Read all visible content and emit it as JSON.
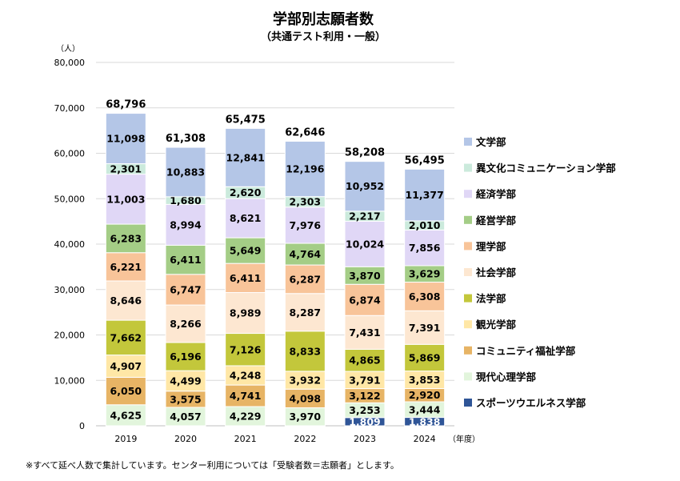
{
  "chart_data": {
    "type": "bar",
    "stacked": true,
    "title": "学部別志願者数",
    "subtitle": "（共通テスト利用・一般）",
    "y_unit": "（人）",
    "x_unit": "（年度）",
    "ylim": [
      0,
      80000
    ],
    "y_ticks": [
      "0",
      "10,000",
      "20,000",
      "30,000",
      "40,000",
      "50,000",
      "60,000",
      "70,000",
      "80,000"
    ],
    "grid": true,
    "legend_position": "right",
    "categories": [
      "2019",
      "2020",
      "2021",
      "2022",
      "2023",
      "2024"
    ],
    "totals": [
      "68,796",
      "61,308",
      "65,475",
      "62,646",
      "58,208",
      "56,495"
    ],
    "series": [
      {
        "name": "スポーツウエルネス学部",
        "color": "#2f5597",
        "values": [
          0,
          0,
          0,
          0,
          1809,
          1838
        ],
        "labels": [
          "",
          "",
          "",
          "",
          "1,809",
          "1,838"
        ]
      },
      {
        "name": "現代心理学部",
        "color": "#e2f5dc",
        "values": [
          4625,
          4057,
          4229,
          3970,
          3253,
          3444
        ],
        "labels": [
          "4,625",
          "4,057",
          "4,229",
          "3,970",
          "3,253",
          "3,444"
        ]
      },
      {
        "name": "コミュニティ福祉学部",
        "color": "#e7b465",
        "values": [
          6050,
          3575,
          4741,
          4098,
          3122,
          2920
        ],
        "labels": [
          "6,050",
          "3,575",
          "4,741",
          "4,098",
          "3,122",
          "2,920"
        ]
      },
      {
        "name": "観光学部",
        "color": "#ffe7a6",
        "values": [
          4907,
          4499,
          4248,
          3932,
          3791,
          3853
        ],
        "labels": [
          "4,907",
          "4,499",
          "4,248",
          "3,932",
          "3,791",
          "3,853"
        ]
      },
      {
        "name": "法学部",
        "color": "#c3c73b",
        "values": [
          7662,
          6196,
          7126,
          8833,
          4865,
          5869
        ],
        "labels": [
          "7,662",
          "6,196",
          "7,126",
          "8,833",
          "4,865",
          "5,869"
        ]
      },
      {
        "name": "社会学部",
        "color": "#fde7d1",
        "values": [
          8646,
          8266,
          8989,
          8287,
          7431,
          7391
        ],
        "labels": [
          "8,646",
          "8,266",
          "8,989",
          "8,287",
          "7,431",
          "7,391"
        ]
      },
      {
        "name": "理学部",
        "color": "#f8c499",
        "values": [
          6221,
          6747,
          6411,
          6287,
          6874,
          6308
        ],
        "labels": [
          "6,221",
          "6,747",
          "6,411",
          "6,287",
          "6,874",
          "6,308"
        ]
      },
      {
        "name": "経営学部",
        "color": "#a4cd86",
        "values": [
          6283,
          6411,
          5649,
          4764,
          3870,
          3629
        ],
        "labels": [
          "6,283",
          "6,411",
          "5,649",
          "4,764",
          "3,870",
          "3,629"
        ]
      },
      {
        "name": "経済学部",
        "color": "#e0d7f6",
        "values": [
          11003,
          8994,
          8621,
          7976,
          10024,
          7856
        ],
        "labels": [
          "11,003",
          "8,994",
          "8,621",
          "7,976",
          "10,024",
          "7,856"
        ]
      },
      {
        "name": "異文化コミュニケーション学部",
        "color": "#cbeadc",
        "values": [
          2301,
          1680,
          2620,
          2303,
          2217,
          2010
        ],
        "labels": [
          "2,301",
          "1,680",
          "2,620",
          "2,303",
          "2,217",
          "2,010"
        ]
      },
      {
        "name": "文学部",
        "color": "#b4c6e7",
        "values": [
          11098,
          10883,
          12841,
          12196,
          10952,
          11377
        ],
        "labels": [
          "11,098",
          "10,883",
          "12,841",
          "12,196",
          "10,952",
          "11,377"
        ]
      }
    ],
    "legend_order": [
      "文学部",
      "異文化コミュニケーション学部",
      "経済学部",
      "経営学部",
      "理学部",
      "社会学部",
      "法学部",
      "観光学部",
      "コミュニティ福祉学部",
      "現代心理学部",
      "スポーツウエルネス学部"
    ]
  },
  "footnote": "※すべて延べ人数で集計しています。センター利用については「受験者数＝志願者」とします。"
}
